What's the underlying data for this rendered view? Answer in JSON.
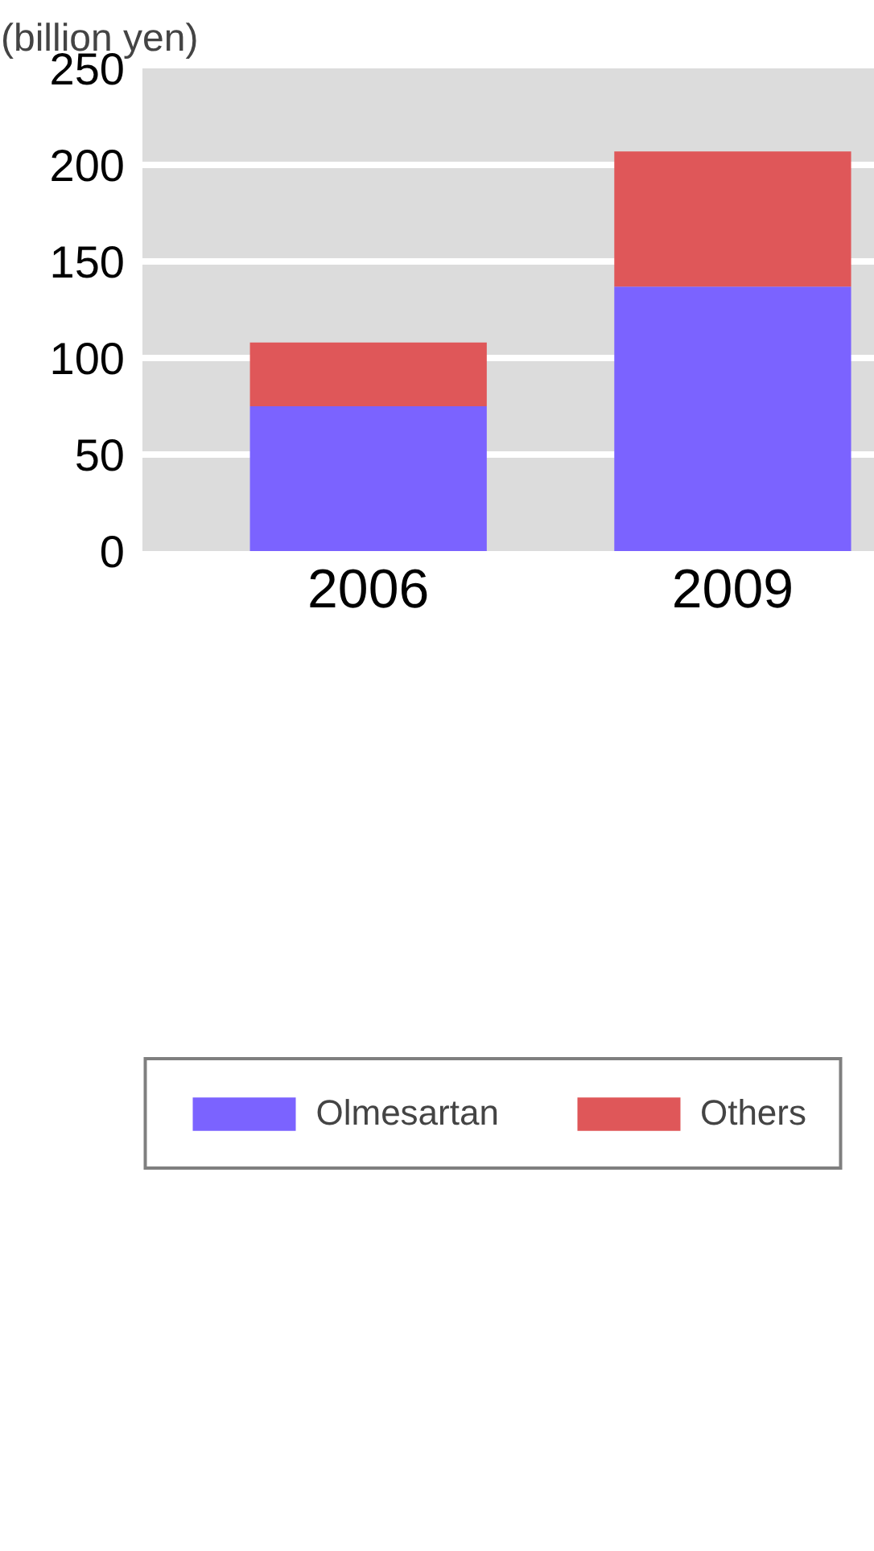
{
  "chart_data": {
    "type": "bar",
    "stacked": true,
    "ylabel": "(billion yen)",
    "categories": [
      "2006",
      "2009"
    ],
    "series": [
      {
        "name": "Olmesartan",
        "color": "#7b63ff",
        "values": [
          75,
          137
        ]
      },
      {
        "name": "Others",
        "color": "#df5759",
        "values": [
          33,
          70
        ]
      }
    ],
    "ylim": [
      0,
      250
    ],
    "yticks": [
      0,
      50,
      100,
      150,
      200,
      250
    ],
    "grid": "y",
    "legend": "bottom"
  }
}
